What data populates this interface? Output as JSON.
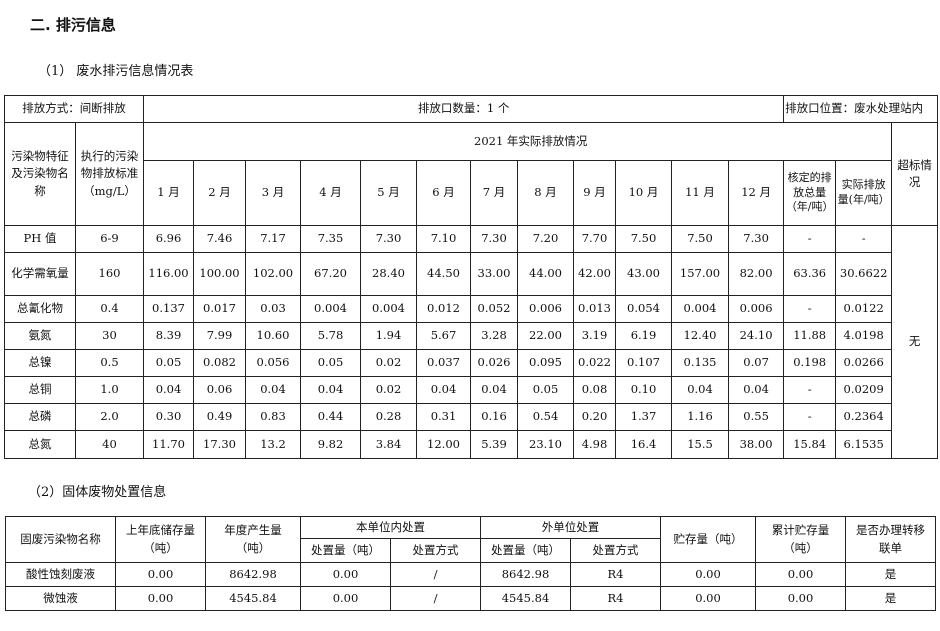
{
  "section_title": "二. 排污信息",
  "wastewater": {
    "title": "（1）   废水排污信息情况表",
    "discharge_mode": "排放方式：间断排放",
    "outlet_count": "排放口数量：1 个",
    "outlet_location": "排放口位置：废水处理站内",
    "col_pollutant": "污染物特征及污染物名称",
    "col_standard": "执行的污染物排放标准（mg/L）",
    "group_header": "2021 年实际排放情况",
    "months": [
      "1 月",
      "2 月",
      "3 月",
      "4 月",
      "5 月",
      "6 月",
      "7 月",
      "8 月",
      "9 月",
      "10 月",
      "11 月",
      "12 月"
    ],
    "col_approved": "核定的排放总量（年/吨）",
    "col_actual": "实际排放量(年/吨）",
    "col_exceed": "超标情况",
    "exceed_value": "无",
    "rows": [
      {
        "name": "PH 值",
        "std": "6-9",
        "m": [
          "6.96",
          "7.46",
          "7.17",
          "7.35",
          "7.30",
          "7.10",
          "7.30",
          "7.20",
          "7.70",
          "7.50",
          "7.50",
          "7.30"
        ],
        "approved": "-",
        "actual": "-"
      },
      {
        "name": "化学需氧量",
        "std": "160",
        "m": [
          "116.00",
          "100.00",
          "102.00",
          "67.20",
          "28.40",
          "44.50",
          "33.00",
          "44.00",
          "42.00",
          "43.00",
          "157.00",
          "82.00"
        ],
        "approved": "63.36",
        "actual": "30.6622"
      },
      {
        "name": "总氰化物",
        "std": "0.4",
        "m": [
          "0.137",
          "0.017",
          "0.03",
          "0.004",
          "0.004",
          "0.012",
          "0.052",
          "0.006",
          "0.013",
          "0.054",
          "0.004",
          "0.006"
        ],
        "approved": "-",
        "actual": "0.0122"
      },
      {
        "name": "氨氮",
        "std": "30",
        "m": [
          "8.39",
          "7.99",
          "10.60",
          "5.78",
          "1.94",
          "5.67",
          "3.28",
          "22.00",
          "3.19",
          "6.19",
          "12.40",
          "24.10"
        ],
        "approved": "11.88",
        "actual": "4.0198"
      },
      {
        "name": "总镍",
        "std": "0.5",
        "m": [
          "0.05",
          "0.082",
          "0.056",
          "0.05",
          "0.02",
          "0.037",
          "0.026",
          "0.095",
          "0.022",
          "0.107",
          "0.135",
          "0.07"
        ],
        "approved": "0.198",
        "actual": "0.0266"
      },
      {
        "name": "总铜",
        "std": "1.0",
        "m": [
          "0.04",
          "0.06",
          "0.04",
          "0.04",
          "0.02",
          "0.04",
          "0.04",
          "0.05",
          "0.08",
          "0.10",
          "0.04",
          "0.04"
        ],
        "approved": "-",
        "actual": "0.0209"
      },
      {
        "name": "总磷",
        "std": "2.0",
        "m": [
          "0.30",
          "0.49",
          "0.83",
          "0.44",
          "0.28",
          "0.31",
          "0.16",
          "0.54",
          "0.20",
          "1.37",
          "1.16",
          "0.55"
        ],
        "approved": "-",
        "actual": "0.2364"
      },
      {
        "name": "总氮",
        "std": "40",
        "m": [
          "11.70",
          "17.30",
          "13.2",
          "9.82",
          "3.84",
          "12.00",
          "5.39",
          "23.10",
          "4.98",
          "16.4",
          "15.5",
          "38.00"
        ],
        "approved": "15.84",
        "actual": "6.1535"
      }
    ]
  },
  "solid_waste": {
    "title": "（2）固体废物处置信息",
    "headers": {
      "name": "固废污染物名称",
      "prev_stock": [
        "上年底储存量",
        "（吨）"
      ],
      "annual": [
        "年度产生量",
        "（吨）"
      ],
      "internal": "本单位内处置",
      "external": "外单位处置",
      "qty": "处置量（吨）",
      "method": "处置方式",
      "storage": "贮存量（吨）",
      "cum_storage": [
        "累计贮存量",
        "（吨）"
      ],
      "transfer": [
        "是否办理转移",
        "联单"
      ]
    },
    "rows": [
      [
        "酸性蚀刻废液",
        "0.00",
        "8642.98",
        "0.00",
        "/",
        "8642.98",
        "R4",
        "0.00",
        "0.00",
        "是"
      ],
      [
        "微蚀液",
        "0.00",
        "4545.84",
        "0.00",
        "/",
        "4545.84",
        "R4",
        "0.00",
        "0.00",
        "是"
      ]
    ]
  }
}
